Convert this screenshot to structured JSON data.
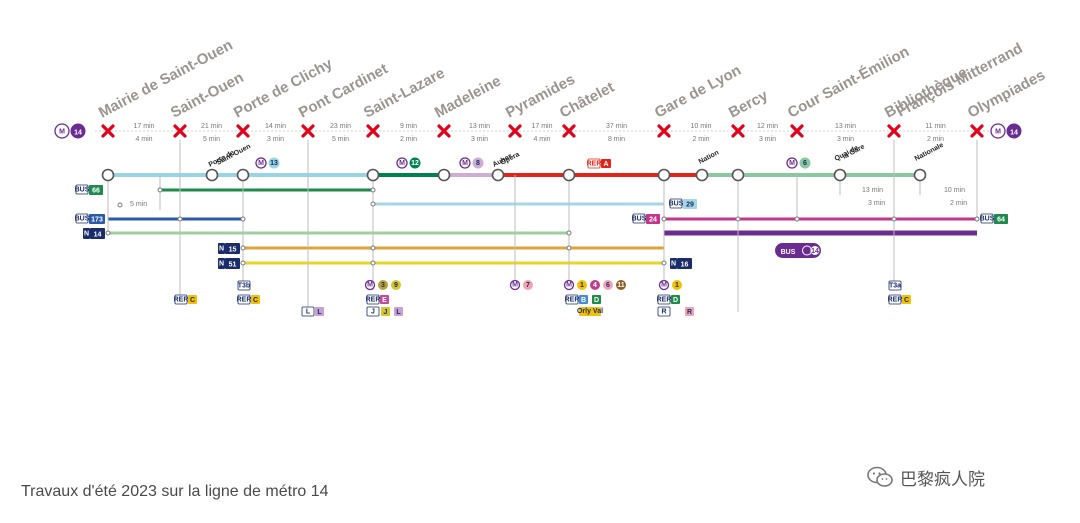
{
  "line_badge": {
    "metro_letter": "M",
    "number": "14",
    "color": "#6a2c91"
  },
  "stations": [
    {
      "id": "mairie",
      "name": "Mairie de Saint-Ouen"
    },
    {
      "id": "stouen",
      "name": "Saint-Ouen"
    },
    {
      "id": "clichy",
      "name": "Porte de Clichy"
    },
    {
      "id": "cardinet",
      "name": "Pont Cardinet"
    },
    {
      "id": "lazare",
      "name": "Saint-Lazare"
    },
    {
      "id": "madeleine",
      "name": "Madeleine"
    },
    {
      "id": "pyramides",
      "name": "Pyramides"
    },
    {
      "id": "chatelet",
      "name": "Châtelet"
    },
    {
      "id": "lyon",
      "name": "Gare de Lyon"
    },
    {
      "id": "bercy",
      "name": "Bercy"
    },
    {
      "id": "emilion",
      "name": "Cour Saint-Émilion"
    },
    {
      "id": "bibliotheque",
      "name": "Bibliothèque François Mitterrand",
      "lines": [
        "Bibliothèque",
        "François Mitterrand"
      ]
    },
    {
      "id": "olympiades",
      "name": "Olympiades"
    }
  ],
  "segments": [
    {
      "walk": "17 min",
      "bike": "4 min"
    },
    {
      "walk": "21 min",
      "bike": "5 min"
    },
    {
      "walk": "14 min",
      "bike": "3 min"
    },
    {
      "walk": "23 min",
      "bike": "5 min"
    },
    {
      "walk": "9 min",
      "bike": "2 min"
    },
    {
      "walk": "13 min",
      "bike": "3 min"
    },
    {
      "walk": "17 min",
      "bike": "4 min"
    },
    {
      "walk": "37 min",
      "bike": "8 min"
    },
    {
      "walk": "10 min",
      "bike": "2 min"
    },
    {
      "walk": "12 min",
      "bike": "3 min"
    },
    {
      "walk": "13 min",
      "bike": "3 min"
    },
    {
      "walk": "11 min",
      "bike": "2 min"
    }
  ],
  "main_nodes": [
    {
      "label": "Porte de Saint-Ouen",
      "lines": [
        "Porte de",
        "Saint-Ouen"
      ]
    },
    {
      "label": "Auber Opéra",
      "lines": [
        "Auber",
        "Opéra"
      ]
    },
    {
      "label": "Nation",
      "lines": [
        "Nation"
      ]
    },
    {
      "label": "Quai de la Gare",
      "lines": [
        "Quai de",
        "la Gare"
      ]
    },
    {
      "label": "Nationale",
      "lines": [
        "Nationale"
      ]
    }
  ],
  "walk_notes": [
    {
      "walk": "5 min"
    },
    {
      "walk": "13 min",
      "bike": "3 min"
    },
    {
      "walk": "10 min",
      "bike": "2 min"
    }
  ],
  "route_badges": {
    "metro": [
      "M",
      "13",
      "12",
      "8",
      "6",
      "7",
      "1",
      "4",
      "11",
      "3",
      "9"
    ],
    "rer": [
      "RER",
      "A",
      "B",
      "C",
      "D",
      "E"
    ],
    "bus": [
      "BUS",
      "66",
      "29",
      "173",
      "24",
      "64"
    ],
    "noctilien": [
      "N",
      "14",
      "15",
      "51",
      "16"
    ],
    "tram": [
      "T3b",
      "T3a"
    ],
    "transilien": [
      "J",
      "L",
      "R"
    ],
    "other": [
      "Orly Val"
    ]
  },
  "replacement_bus": {
    "label": "BUS",
    "line": "14"
  },
  "colors": {
    "station_label": "#9a9590",
    "cross": "#e2001a",
    "metro14": "#6a2c91",
    "line13": "#98d4e2",
    "line12": "#00814f",
    "line8": "#ceadd2",
    "rerA": "#e2231a",
    "line6": "#8ac8a0",
    "bus66_green": "#1f8a4c",
    "bus29_blue": "#a6d6e6",
    "bus173_blue": "#2a5aa8",
    "bus24_magenta": "#c4368c",
    "n14_green": "#9ccfa2",
    "n15_orange": "#e0a33a",
    "n51_yellow": "#e8d52a",
    "navy": "#1a2c6b"
  },
  "caption": "Travaux d'été 2023 sur la ligne de métro 14",
  "watermark": "巴黎疯人院"
}
